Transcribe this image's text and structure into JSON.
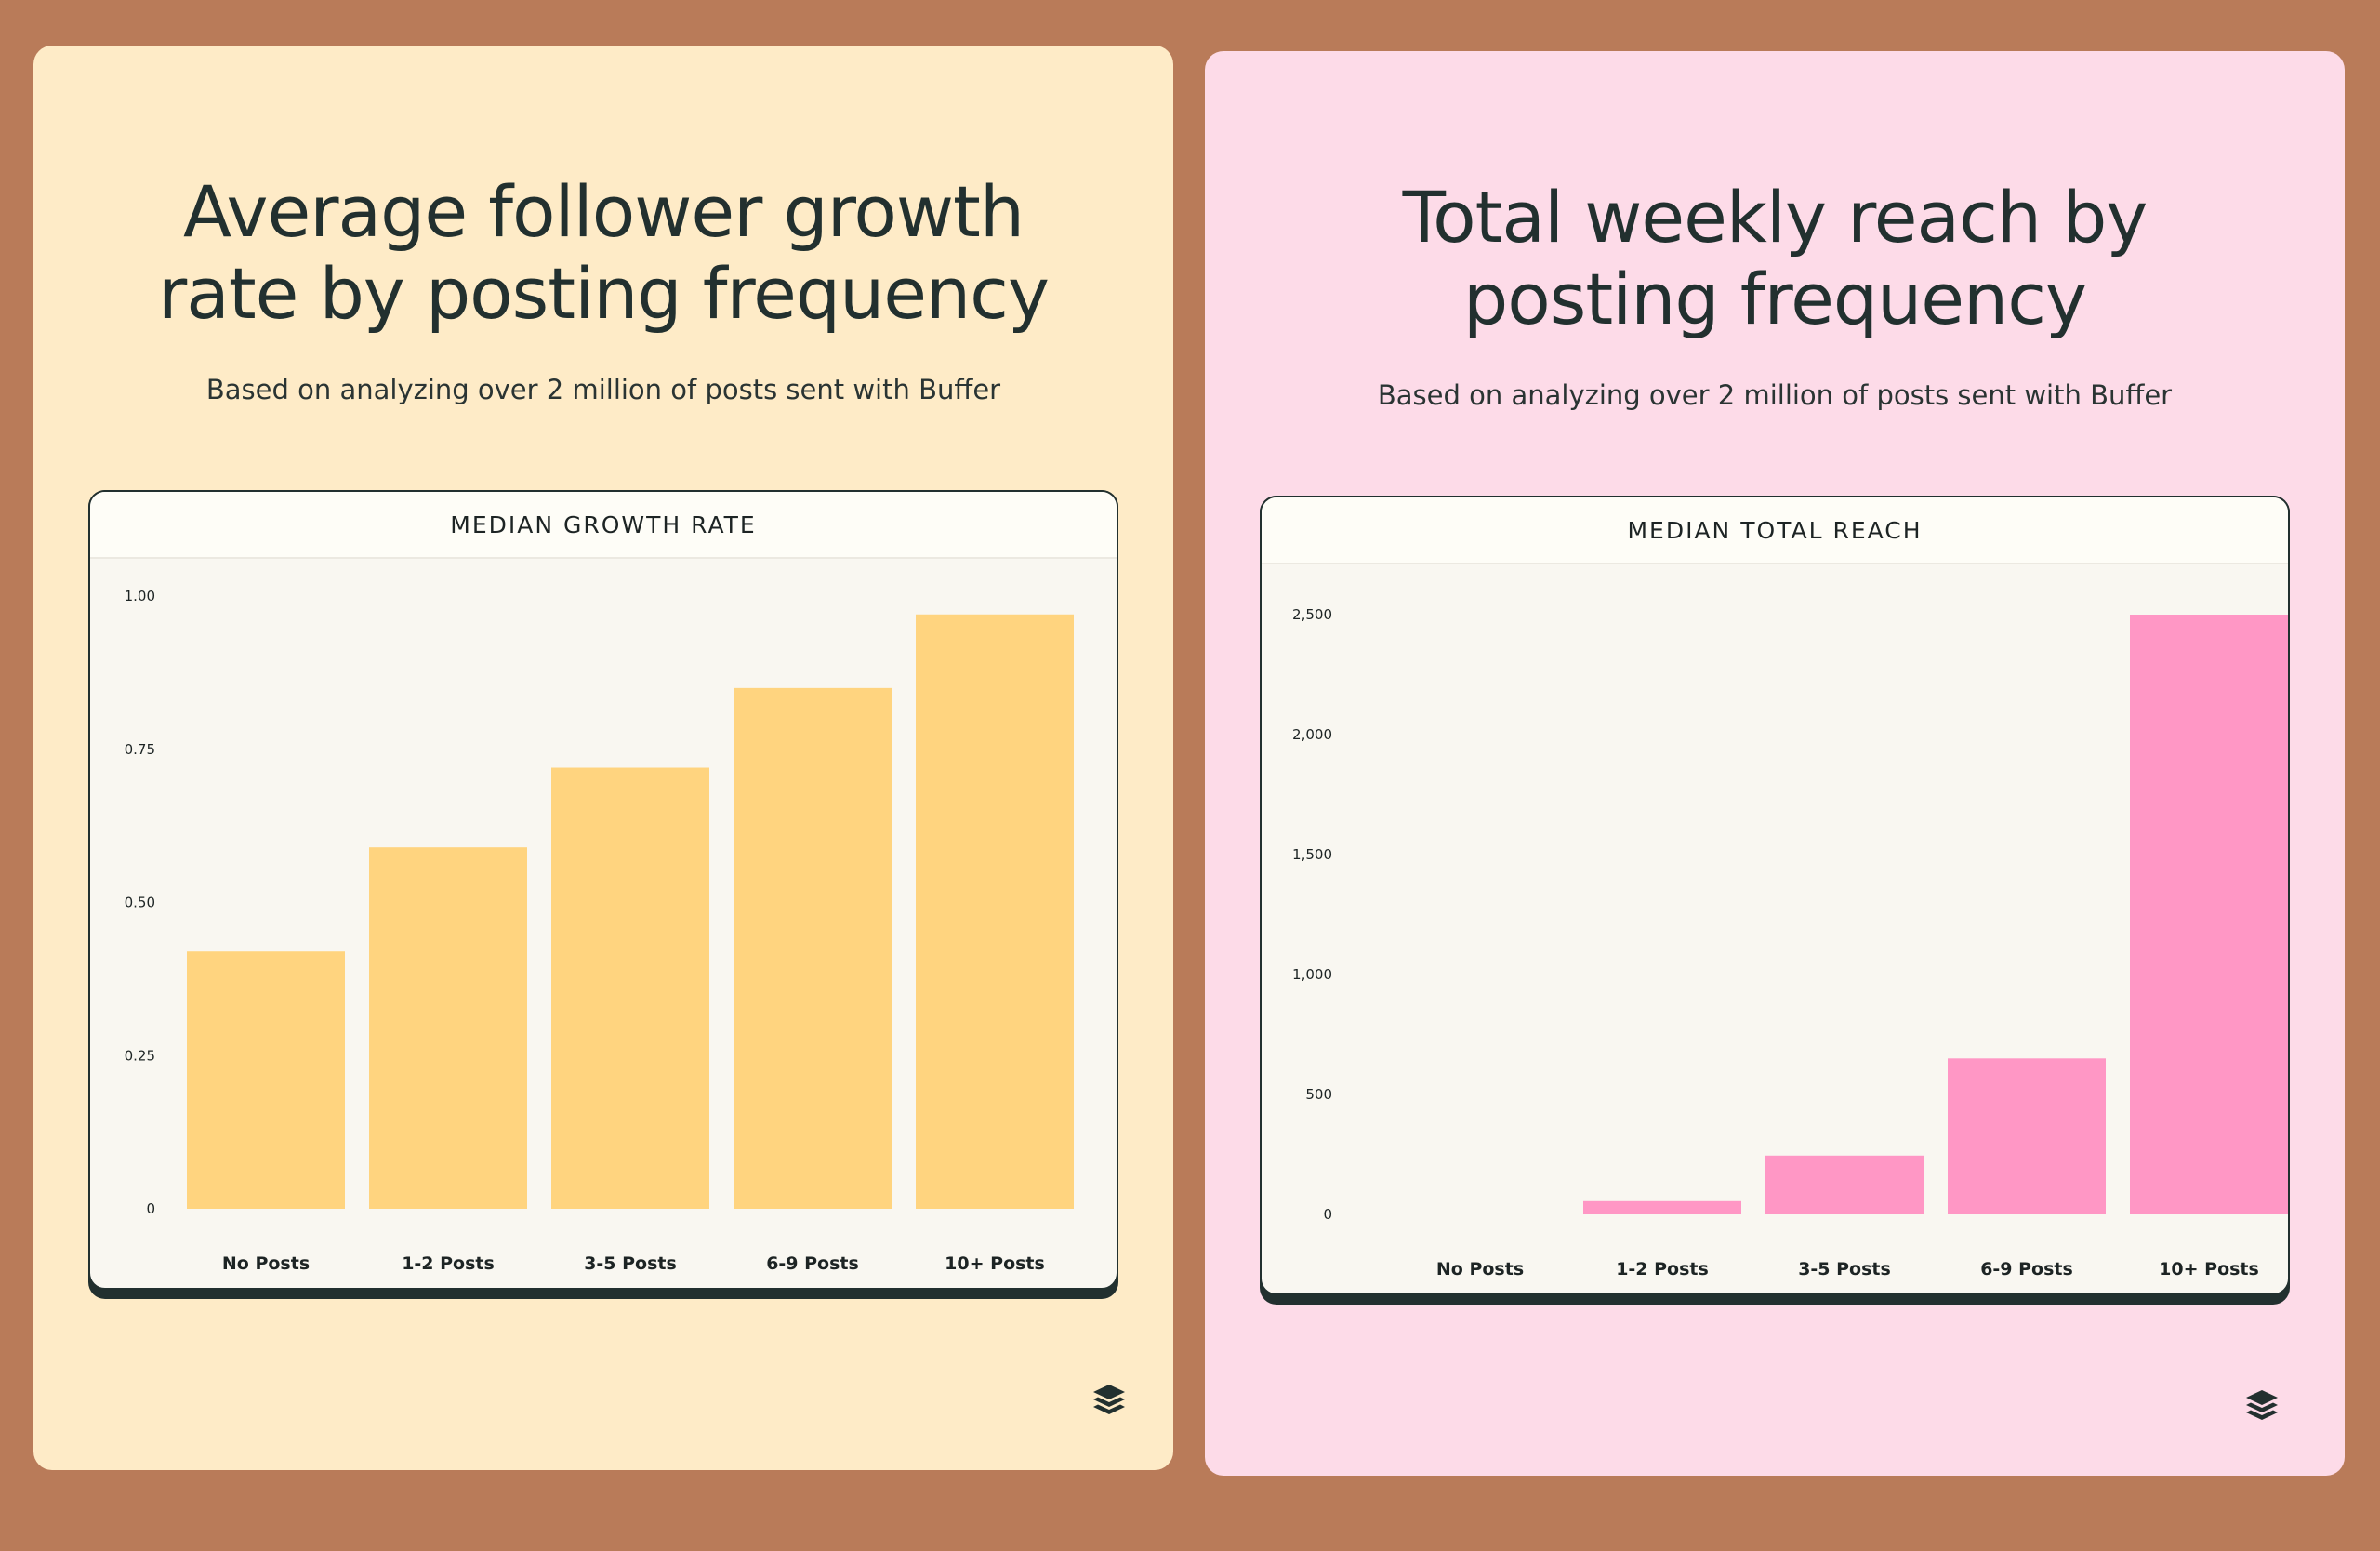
{
  "cards": [
    {
      "title_lines": [
        "Average follower growth",
        "rate by posting frequency"
      ],
      "subtitle": "Based on analyzing over 2 million of posts sent with Buffer",
      "logo_icon": "buffer-logo-icon"
    },
    {
      "title_lines": [
        "Total weekly reach by",
        "posting frequency"
      ],
      "subtitle": "Based on analyzing over 2 million of posts sent with Buffer",
      "logo_icon": "buffer-logo-icon"
    }
  ],
  "chart_data": [
    {
      "type": "bar",
      "title": "MEDIAN GROWTH RATE",
      "categories": [
        "No Posts",
        "1-2 Posts",
        "3-5 Posts",
        "6-9 Posts",
        "10+ Posts"
      ],
      "values": [
        0.42,
        0.59,
        0.72,
        0.85,
        0.97
      ],
      "yticks": [
        "0",
        "0.25",
        "0.50",
        "0.75",
        "1.00"
      ],
      "ytick_values": [
        0,
        0.25,
        0.5,
        0.75,
        1.0
      ],
      "ylim": [
        0,
        1.0
      ],
      "xlabel": "",
      "ylabel": "",
      "grid": false,
      "bar_color": "#ffd47f"
    },
    {
      "type": "bar",
      "title": "MEDIAN TOTAL REACH",
      "categories": [
        "No Posts",
        "1-2 Posts",
        "3-5 Posts",
        "6-9 Posts",
        "10+ Posts"
      ],
      "values": [
        0,
        55,
        245,
        650,
        2500
      ],
      "yticks": [
        "0",
        "500",
        "1,000",
        "1,500",
        "2,000",
        "2,500"
      ],
      "ytick_values": [
        0,
        500,
        1000,
        1500,
        2000,
        2500
      ],
      "ylim": [
        0,
        2500
      ],
      "xlabel": "",
      "ylabel": "",
      "grid": false,
      "bar_color": "#ff97c5"
    }
  ]
}
